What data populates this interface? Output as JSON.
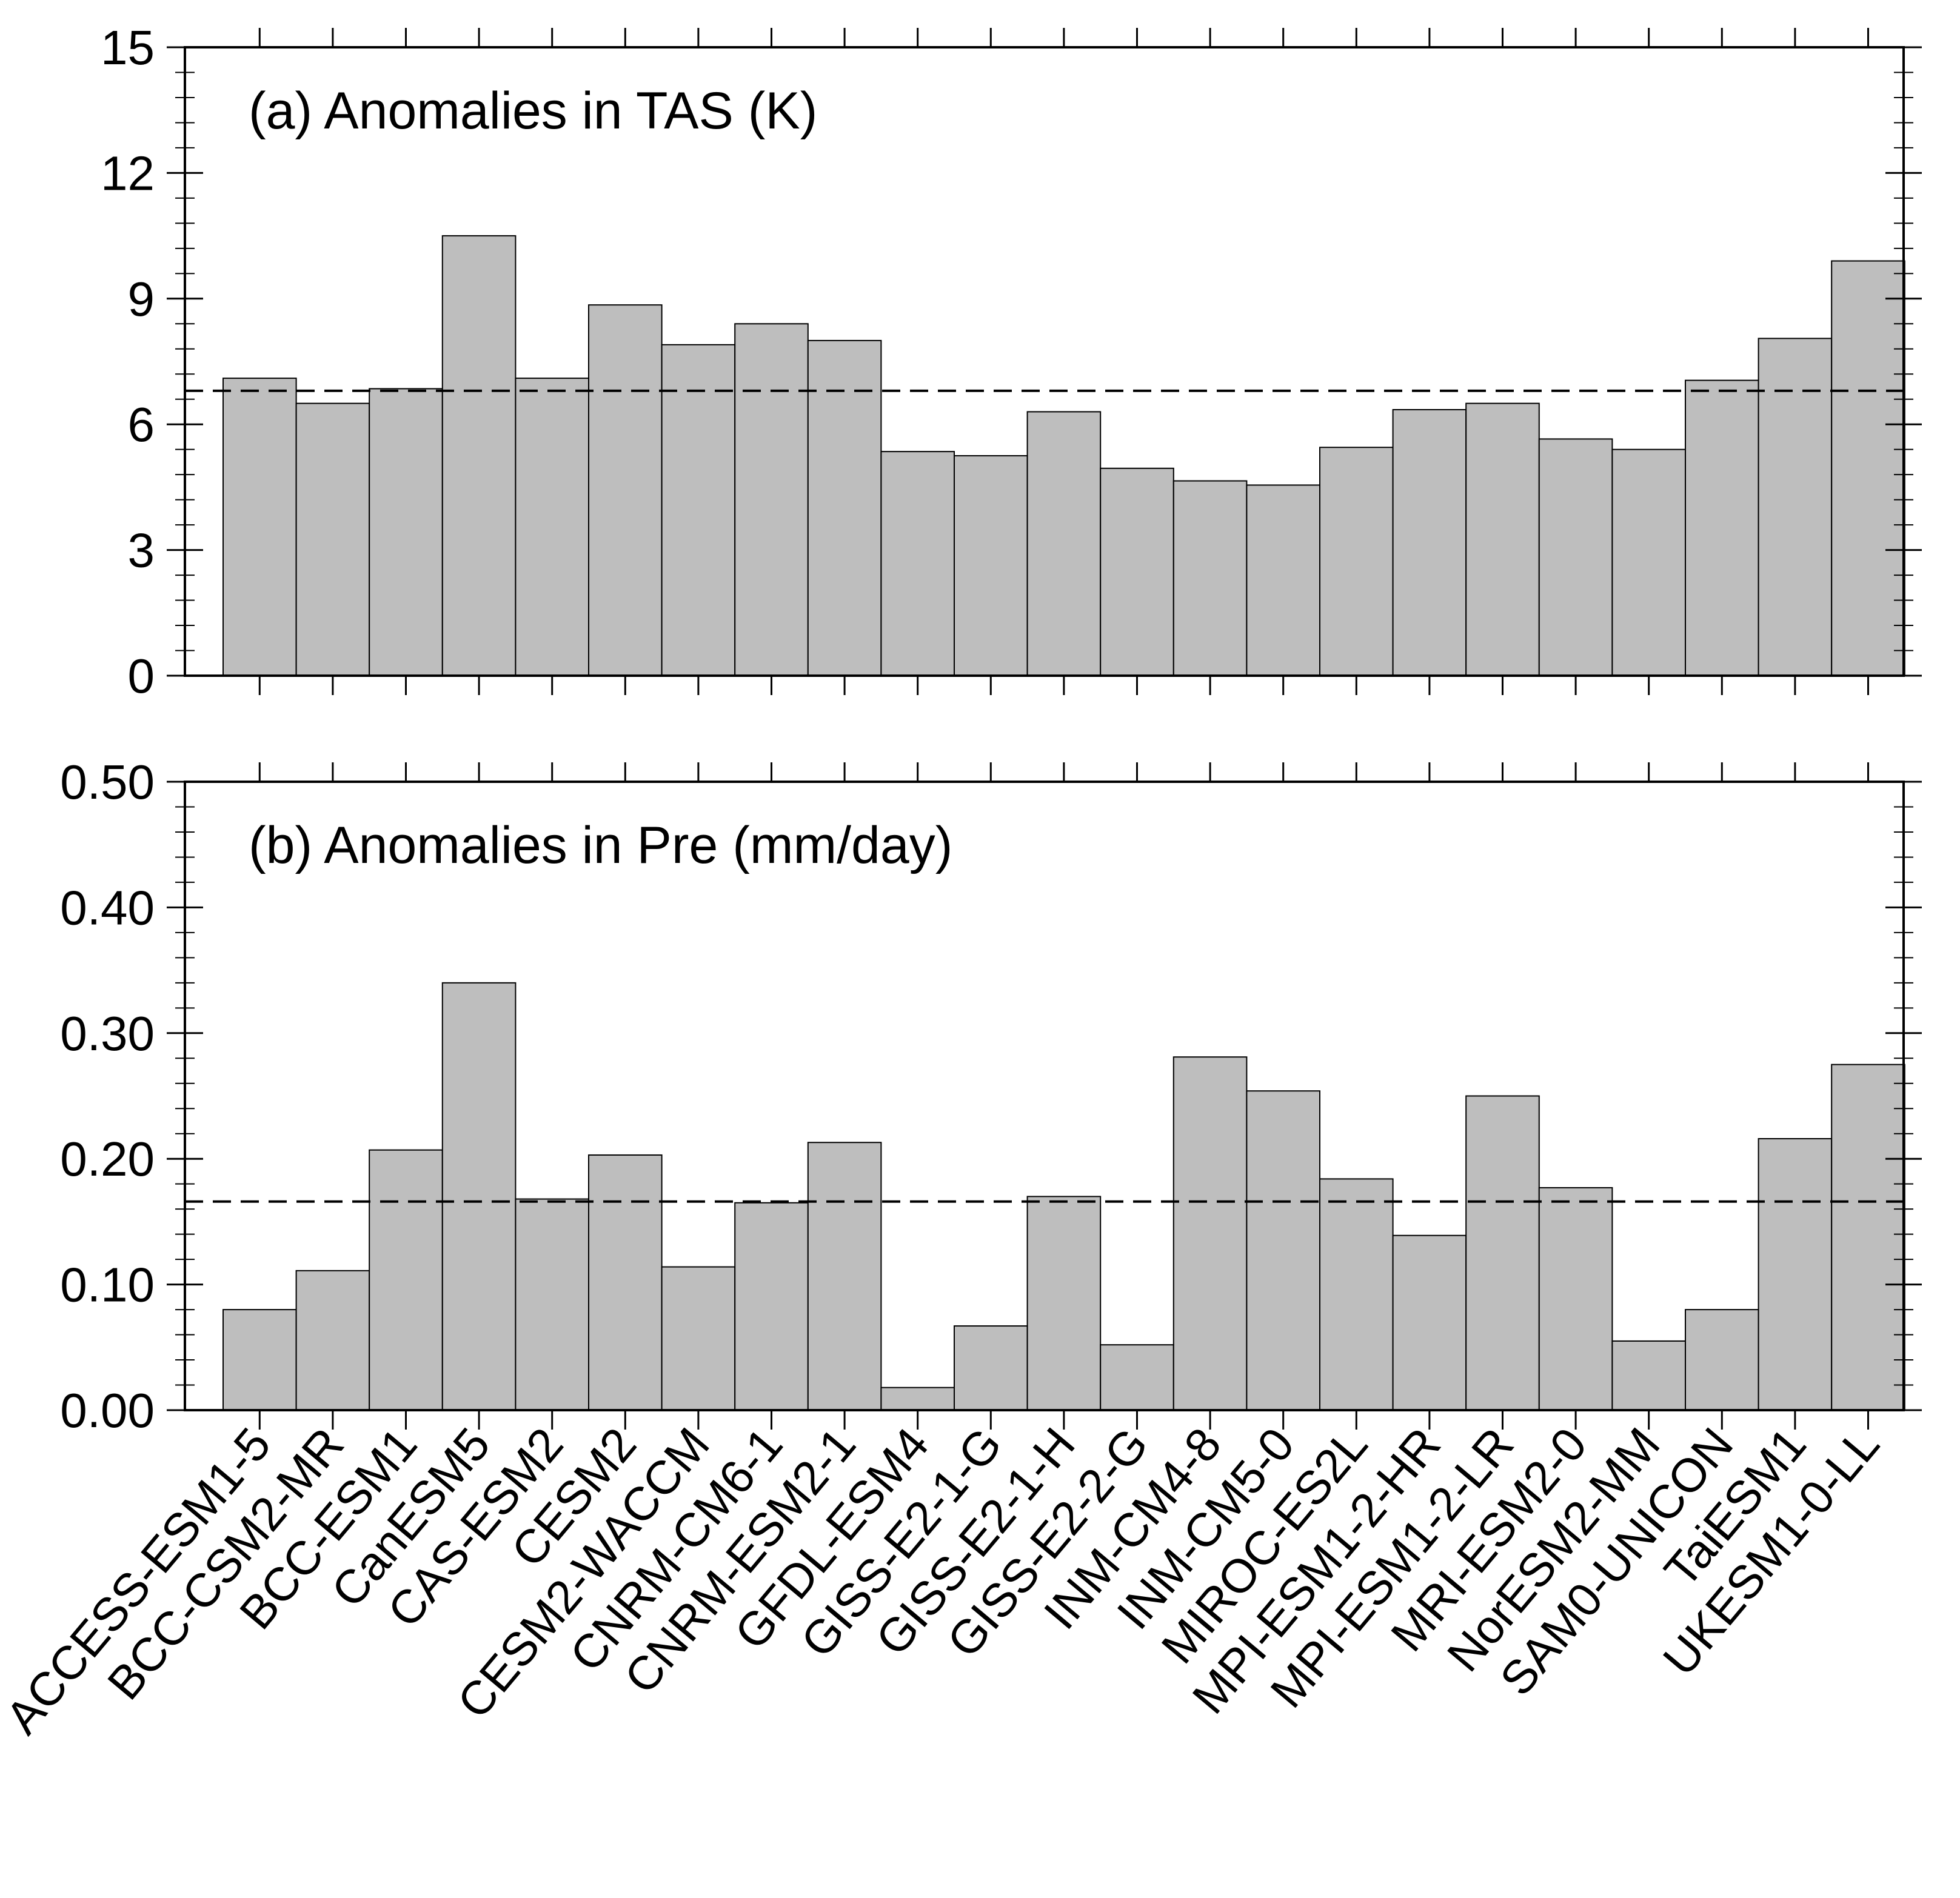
{
  "models": [
    "ACCESS-ESM1-5",
    "BCC-CSM2-MR",
    "BCC-ESM1",
    "CanESM5",
    "CAS-ESM2",
    "CESM2",
    "CESM2-WACCM",
    "CNRM-CM6-1",
    "CNRM-ESM2-1",
    "GFDL-ESM4",
    "GISS-E2-1-G",
    "GISS-E2-1-H",
    "GISS-E2-2-G",
    "INM-CM4-8",
    "INM-CM5-0",
    "MIROC-ES2L",
    "MPI-ESM1-2-HR",
    "MPI-ESM1-2-LR",
    "MRI-ESM2-0",
    "NorESM2-MM",
    "SAM0-UNICON",
    "TaiESM1",
    "UKESM1-0-LL"
  ],
  "chart_data": [
    {
      "type": "bar",
      "title": "(a) Anomalies in TAS (K)",
      "xlabel": "",
      "ylabel": "",
      "ylim": [
        0,
        15
      ],
      "yticks": [
        0,
        3,
        6,
        9,
        12,
        15
      ],
      "ytick_labels": [
        "0",
        "3",
        "6",
        "9",
        "12",
        "15"
      ],
      "mean_line": 6.8,
      "bar_color": "#bebebe",
      "values": [
        7.1,
        6.5,
        6.85,
        10.5,
        7.1,
        8.85,
        7.9,
        8.4,
        8.0,
        5.35,
        5.25,
        6.3,
        4.95,
        4.65,
        4.55,
        5.45,
        6.35,
        6.5,
        5.65,
        5.4,
        7.05,
        8.05,
        9.9
      ]
    },
    {
      "type": "bar",
      "title": "(b) Anomalies in Pre (mm/day)",
      "xlabel": "",
      "ylabel": "",
      "ylim": [
        0,
        0.5
      ],
      "yticks": [
        0,
        0.1,
        0.2,
        0.3,
        0.4,
        0.5
      ],
      "ytick_labels": [
        "0.00",
        "0.10",
        "0.20",
        "0.30",
        "0.40",
        "0.50"
      ],
      "mean_line": 0.166,
      "bar_color": "#bebebe",
      "values": [
        0.08,
        0.111,
        0.207,
        0.34,
        0.168,
        0.203,
        0.114,
        0.165,
        0.213,
        0.018,
        0.067,
        0.17,
        0.052,
        0.281,
        0.254,
        0.184,
        0.139,
        0.25,
        0.177,
        0.055,
        0.08,
        0.216,
        0.275
      ]
    }
  ]
}
